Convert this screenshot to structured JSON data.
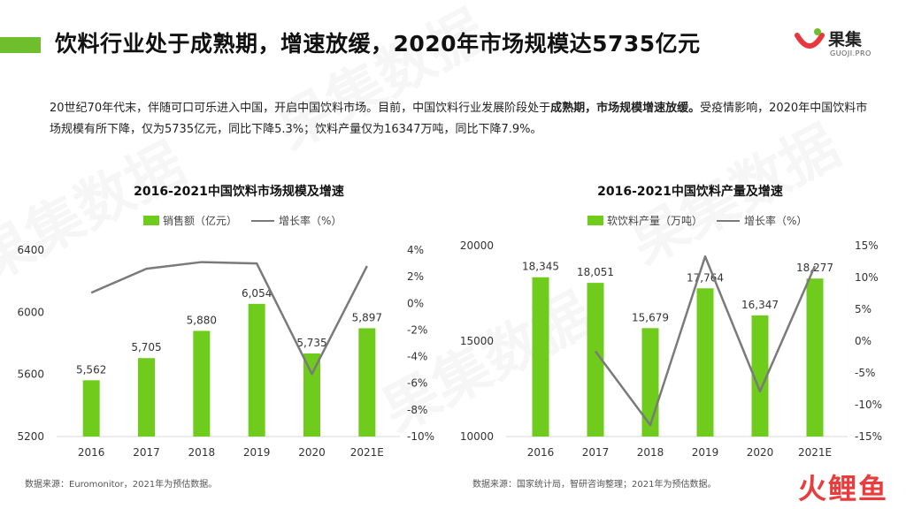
{
  "header": {
    "title": "饮料行业处于成熟期，增速放缓，2020年市场规模达5735亿元",
    "accent_color": "#6fbe2e",
    "logo_name": "果集",
    "logo_sub": "GUOJI.PRO"
  },
  "intro": {
    "part1": "20世纪70年代末，伴随可口可乐进入中国，开启中国饮料市场。目前，中国饮料行业发展阶段处于",
    "bold": "成熟期，市场规模增速放缓。",
    "part2": "受疫情影响，2020年中国饮料市场规模有所下降，仅为5735亿元，同比下降5.3%；饮料产量仅为16347万吨，同比下降7.9%。"
  },
  "watermark": {
    "text": "果集数据",
    "corner": "火鲤鱼"
  },
  "chart_data": [
    {
      "type": "bar",
      "title": "2016-2021中国饮料市场规模及增速",
      "categories": [
        "2016",
        "2017",
        "2018",
        "2019",
        "2020",
        "2021E"
      ],
      "series": [
        {
          "name": "销售额（亿元）",
          "type": "bar",
          "axis": "left",
          "color": "#6fcb1c",
          "values": [
            5562,
            5705,
            5880,
            6054,
            5735,
            5897
          ],
          "labels": [
            "5,562",
            "5,705",
            "5,880",
            "6,054",
            "5,735",
            "5,897"
          ]
        },
        {
          "name": "增长率（%）",
          "type": "line",
          "axis": "right",
          "color": "#7a7a7a",
          "values": [
            0.8,
            2.6,
            3.1,
            3.0,
            -5.3,
            2.8
          ]
        }
      ],
      "ylim_left": [
        5200,
        6400
      ],
      "yticks_left": [
        5200,
        5600,
        6000,
        6400
      ],
      "ylim_right": [
        -10,
        4
      ],
      "yticks_right": [
        "-10%",
        "-8%",
        "-6%",
        "-4%",
        "-2%",
        "0%",
        "2%",
        "4%"
      ],
      "source": "数据来源：Euromonitor，2021年为预估数据。"
    },
    {
      "type": "bar",
      "title": "2016-2021中国饮料产量及增速",
      "categories": [
        "2016",
        "2017",
        "2018",
        "2019",
        "2020",
        "2021E"
      ],
      "series": [
        {
          "name": "软饮料产量（万吨）",
          "type": "bar",
          "axis": "left",
          "color": "#6fcb1c",
          "values": [
            18345,
            18051,
            15679,
            17764,
            16347,
            18277
          ],
          "labels": [
            "18,345",
            "18,051",
            "15,679",
            "17,764",
            "16,347",
            "18,277"
          ]
        },
        {
          "name": "增长率（%）",
          "type": "line",
          "axis": "right",
          "color": "#7a7a7a",
          "values": [
            null,
            -1.6,
            -13.2,
            13.3,
            -7.9,
            11.8
          ]
        }
      ],
      "ylim_left": [
        10000,
        20000
      ],
      "yticks_left": [
        10000,
        15000,
        20000
      ],
      "ylim_right": [
        -15,
        15
      ],
      "yticks_right": [
        "-15%",
        "-10%",
        "-5%",
        "0%",
        "5%",
        "10%",
        "15%"
      ],
      "source": "数据来源：国家统计局，智研咨询整理；2021年为预估数据。"
    }
  ]
}
